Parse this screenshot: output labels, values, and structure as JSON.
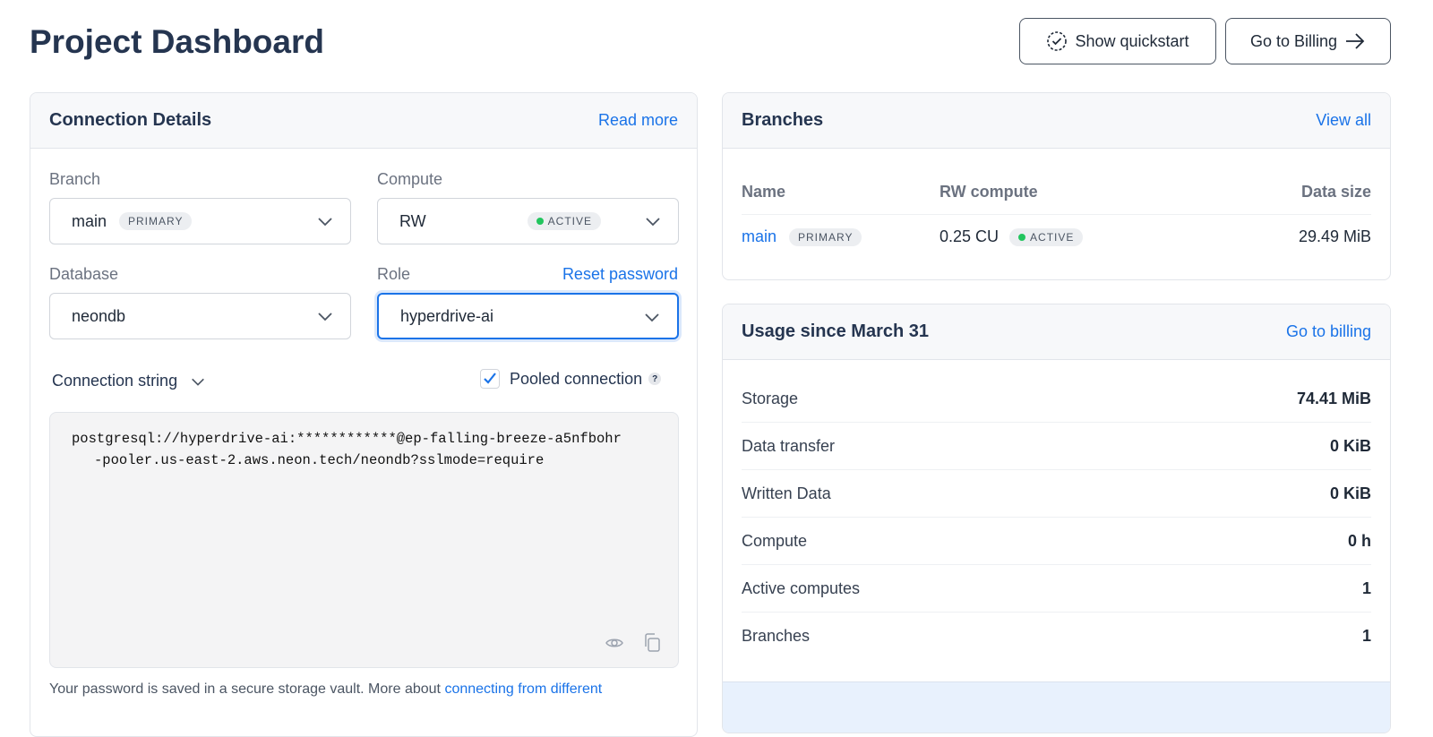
{
  "page": {
    "title": "Project Dashboard"
  },
  "header": {
    "quickstart": "Show quickstart",
    "billing": "Go to Billing"
  },
  "connection": {
    "title": "Connection Details",
    "read_more": "Read more",
    "branch_label": "Branch",
    "branch_value": "main",
    "branch_badge": "PRIMARY",
    "compute_label": "Compute",
    "compute_value": "RW",
    "compute_status": "ACTIVE",
    "database_label": "Database",
    "database_value": "neondb",
    "role_label": "Role",
    "reset_password": "Reset password",
    "role_value": "hyperdrive-ai",
    "conn_string_label": "Connection string",
    "pooled_label": "Pooled connection",
    "pooled_checked": true,
    "help": "?",
    "conn_line1": "postgresql://hyperdrive-ai:************@ep-falling-breeze-a5nfbohr",
    "conn_line2": "-pooler.us-east-2.aws.neon.tech/neondb?sslmode=require",
    "footer_text": "Your password is saved in a secure storage vault. More about ",
    "footer_link": "connecting from different"
  },
  "branches": {
    "title": "Branches",
    "view_all": "View all",
    "col_name": "Name",
    "col_compute": "RW compute",
    "col_size": "Data size",
    "rows": [
      {
        "name": "main",
        "badge": "PRIMARY",
        "compute": "0.25 CU",
        "status": "ACTIVE",
        "size": "29.49 MiB"
      }
    ]
  },
  "usage": {
    "title": "Usage since March 31",
    "go_billing": "Go to billing",
    "rows": [
      {
        "label": "Storage",
        "value": "74.41 MiB"
      },
      {
        "label": "Data transfer",
        "value": "0 KiB"
      },
      {
        "label": "Written Data",
        "value": "0 KiB"
      },
      {
        "label": "Compute",
        "value": "0 h"
      },
      {
        "label": "Active computes",
        "value": "1"
      },
      {
        "label": "Branches",
        "value": "1"
      }
    ]
  },
  "colors": {
    "accent": "#1a73e8",
    "active": "#22c55e",
    "title": "#253550"
  }
}
